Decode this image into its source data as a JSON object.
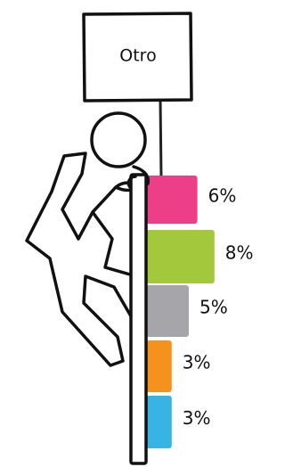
{
  "chart_data": {
    "type": "bar",
    "orientation": "horizontal",
    "title": "Otro",
    "values": [
      6,
      8,
      5,
      3,
      3
    ],
    "value_labels": [
      "6%",
      "8%",
      "5%",
      "3%",
      "3%"
    ],
    "colors": [
      "#ec3f87",
      "#a4c83c",
      "#a6a5aa",
      "#f5921e",
      "#37b3e4"
    ]
  }
}
